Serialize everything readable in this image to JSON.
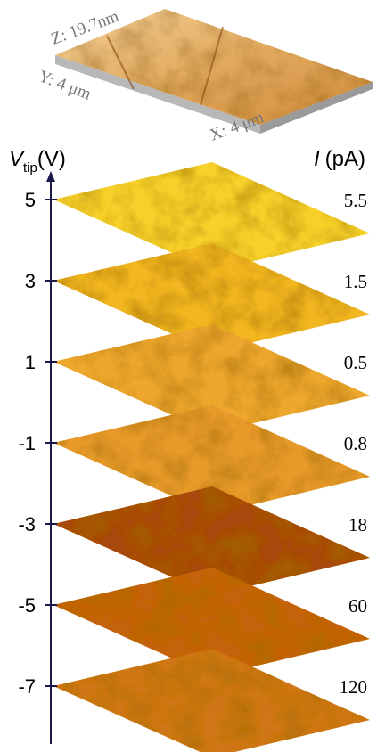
{
  "topography": {
    "z_label": "Z: 19.7nm",
    "y_label": "Y: 4 μm",
    "x_label": "X: 4 μm"
  },
  "voltage_axis": {
    "symbol": "V",
    "subscript": "tip",
    "unit": "(V)"
  },
  "current_axis": {
    "symbol": "I",
    "unit": "(pA)"
  },
  "layers": [
    {
      "voltage": "5",
      "current": "5.5"
    },
    {
      "voltage": "3",
      "current": "1.5"
    },
    {
      "voltage": "1",
      "current": "0.5"
    },
    {
      "voltage": "-1",
      "current": "0.8"
    },
    {
      "voltage": "-3",
      "current": "18"
    },
    {
      "voltage": "-5",
      "current": "60"
    },
    {
      "voltage": "-7",
      "current": "120"
    }
  ]
}
